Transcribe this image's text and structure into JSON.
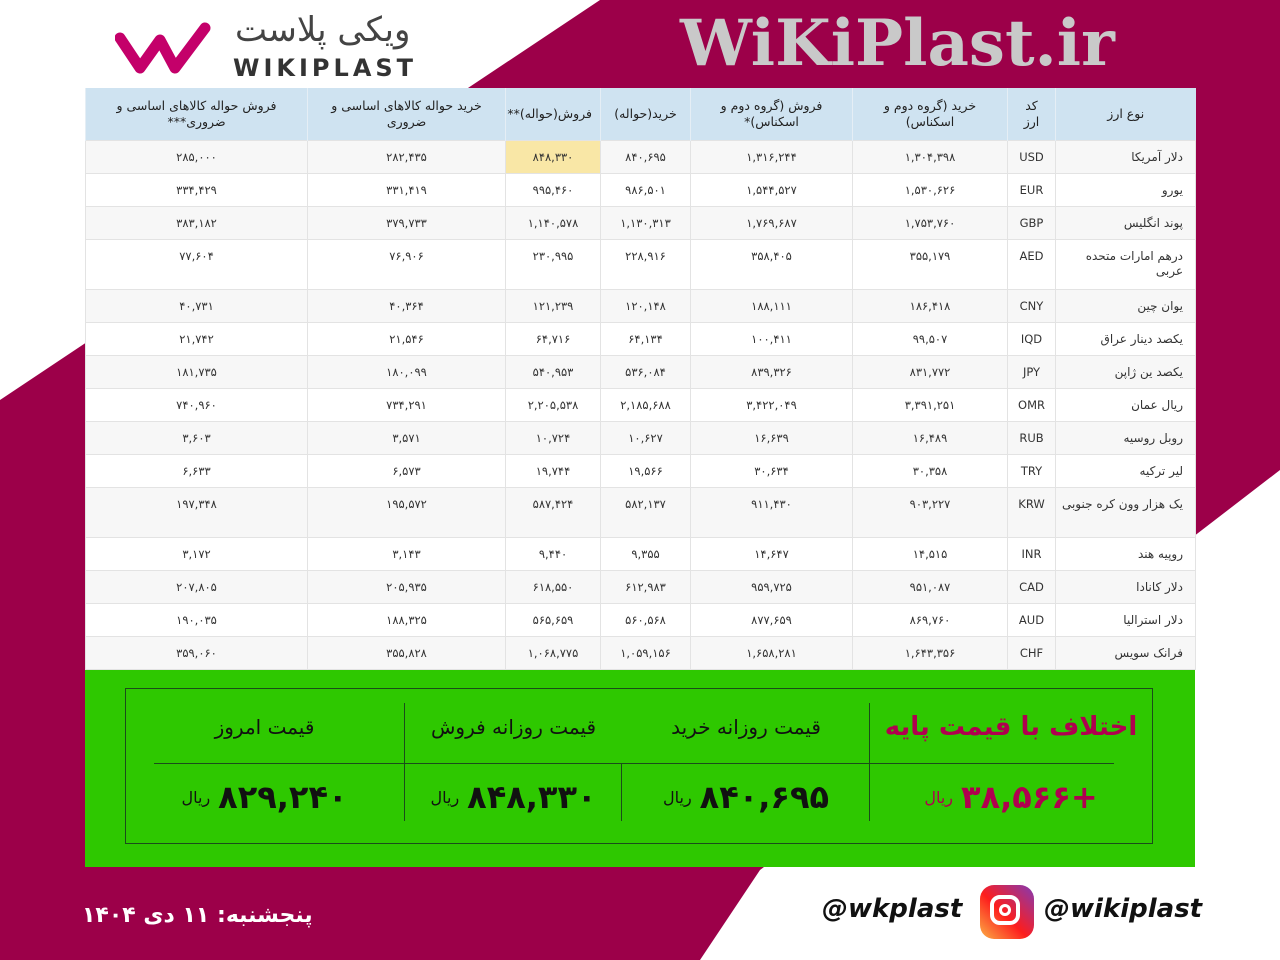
{
  "brand": {
    "name_fa": "ویکی پلاست",
    "name_en": "WIKIPLAST",
    "accent": "#9c0049"
  },
  "watermark": "WiKiPlast.ir",
  "table": {
    "headers": [
      "نوع ارز",
      "کد ارز",
      "خرید (گروه دوم و اسکناس)",
      "فروش (گروه دوم و اسکناس)*",
      "خرید(حواله)",
      "فروش(حواله)**",
      "خرید حواله کالاهای اساسی و ضروری",
      "فروش حواله کالاهای اساسی و ضروری***"
    ],
    "rows": [
      [
        "دلار آمریکا",
        "USD",
        "۱,۳۰۴,۳۹۸",
        "۱,۳۱۶,۲۴۴",
        "۸۴۰,۶۹۵",
        "۸۴۸,۳۳۰",
        "۲۸۲,۴۳۵",
        "۲۸۵,۰۰۰"
      ],
      [
        "یورو",
        "EUR",
        "۱,۵۳۰,۶۲۶",
        "۱,۵۴۴,۵۲۷",
        "۹۸۶,۵۰۱",
        "۹۹۵,۴۶۰",
        "۳۳۱,۴۱۹",
        "۳۳۴,۴۲۹"
      ],
      [
        "پوند انگلیس",
        "GBP",
        "۱,۷۵۳,۷۶۰",
        "۱,۷۶۹,۶۸۷",
        "۱,۱۳۰,۳۱۳",
        "۱,۱۴۰,۵۷۸",
        "۳۷۹,۷۳۳",
        "۳۸۳,۱۸۲"
      ],
      [
        "درهم امارات متحده عربی",
        "AED",
        "۳۵۵,۱۷۹",
        "۳۵۸,۴۰۵",
        "۲۲۸,۹۱۶",
        "۲۳۰,۹۹۵",
        "۷۶,۹۰۶",
        "۷۷,۶۰۴"
      ],
      [
        "یوان چین",
        "CNY",
        "۱۸۶,۴۱۸",
        "۱۸۸,۱۱۱",
        "۱۲۰,۱۴۸",
        "۱۲۱,۲۳۹",
        "۴۰,۳۶۴",
        "۴۰,۷۳۱"
      ],
      [
        "یکصد دینار عراق",
        "IQD",
        "۹۹,۵۰۷",
        "۱۰۰,۴۱۱",
        "۶۴,۱۳۴",
        "۶۴,۷۱۶",
        "۲۱,۵۴۶",
        "۲۱,۷۴۲"
      ],
      [
        "یکصد ین ژاپن",
        "JPY",
        "۸۳۱,۷۷۲",
        "۸۳۹,۳۲۶",
        "۵۳۶,۰۸۴",
        "۵۴۰,۹۵۳",
        "۱۸۰,۰۹۹",
        "۱۸۱,۷۳۵"
      ],
      [
        "ریال عمان",
        "OMR",
        "۳,۳۹۱,۲۵۱",
        "۳,۴۲۲,۰۴۹",
        "۲,۱۸۵,۶۸۸",
        "۲,۲۰۵,۵۳۸",
        "۷۳۴,۲۹۱",
        "۷۴۰,۹۶۰"
      ],
      [
        "روبل روسیه",
        "RUB",
        "۱۶,۴۸۹",
        "۱۶,۶۳۹",
        "۱۰,۶۲۷",
        "۱۰,۷۲۴",
        "۳,۵۷۱",
        "۳,۶۰۳"
      ],
      [
        "لیر ترکیه",
        "TRY",
        "۳۰,۳۵۸",
        "۳۰,۶۳۴",
        "۱۹,۵۶۶",
        "۱۹,۷۴۴",
        "۶,۵۷۳",
        "۶,۶۳۳"
      ],
      [
        "یک هزار وون کره جنوبی",
        "KRW",
        "۹۰۳,۲۲۷",
        "۹۱۱,۴۳۰",
        "۵۸۲,۱۳۷",
        "۵۸۷,۴۲۴",
        "۱۹۵,۵۷۲",
        "۱۹۷,۳۴۸"
      ],
      [
        "روپیه هند",
        "INR",
        "۱۴,۵۱۵",
        "۱۴,۶۴۷",
        "۹,۳۵۵",
        "۹,۴۴۰",
        "۳,۱۴۳",
        "۳,۱۷۲"
      ],
      [
        "دلار کانادا",
        "CAD",
        "۹۵۱,۰۸۷",
        "۹۵۹,۷۲۵",
        "۶۱۲,۹۸۳",
        "۶۱۸,۵۵۰",
        "۲۰۵,۹۳۵",
        "۲۰۷,۸۰۵"
      ],
      [
        "دلار استرالیا",
        "AUD",
        "۸۶۹,۷۶۰",
        "۸۷۷,۶۵۹",
        "۵۶۰,۵۶۸",
        "۵۶۵,۶۵۹",
        "۱۸۸,۳۲۵",
        "۱۹۰,۰۳۵"
      ],
      [
        "فرانک سویس",
        "CHF",
        "۱,۶۴۳,۳۵۶",
        "۱,۶۵۸,۲۸۱",
        "۱,۰۵۹,۱۵۶",
        "۱,۰۶۸,۷۷۵",
        "۳۵۵,۸۲۸",
        "۳۵۹,۰۶۰"
      ]
    ]
  },
  "summary": {
    "title": "اختلاف با قیمت پایه",
    "diff": "+۳۸,۵۶۶",
    "daily_buy_label": "قیمت روزانه خرید",
    "daily_buy": "۸۴۰,۶۹۵",
    "daily_sell_label": "قیمت روزانه فروش",
    "daily_sell": "۸۴۸,۳۳۰",
    "today_label": "قیمت امروز",
    "today": "۸۲۹,۲۴۰",
    "unit": "ریال",
    "bg_color": "#2ec800"
  },
  "footer": {
    "date": "پنجشنبه: ۱۱ دی ۱۴۰۴",
    "handle1": "@wkplast",
    "handle2": "@wikiplast",
    "icon": "instagram-icon"
  }
}
